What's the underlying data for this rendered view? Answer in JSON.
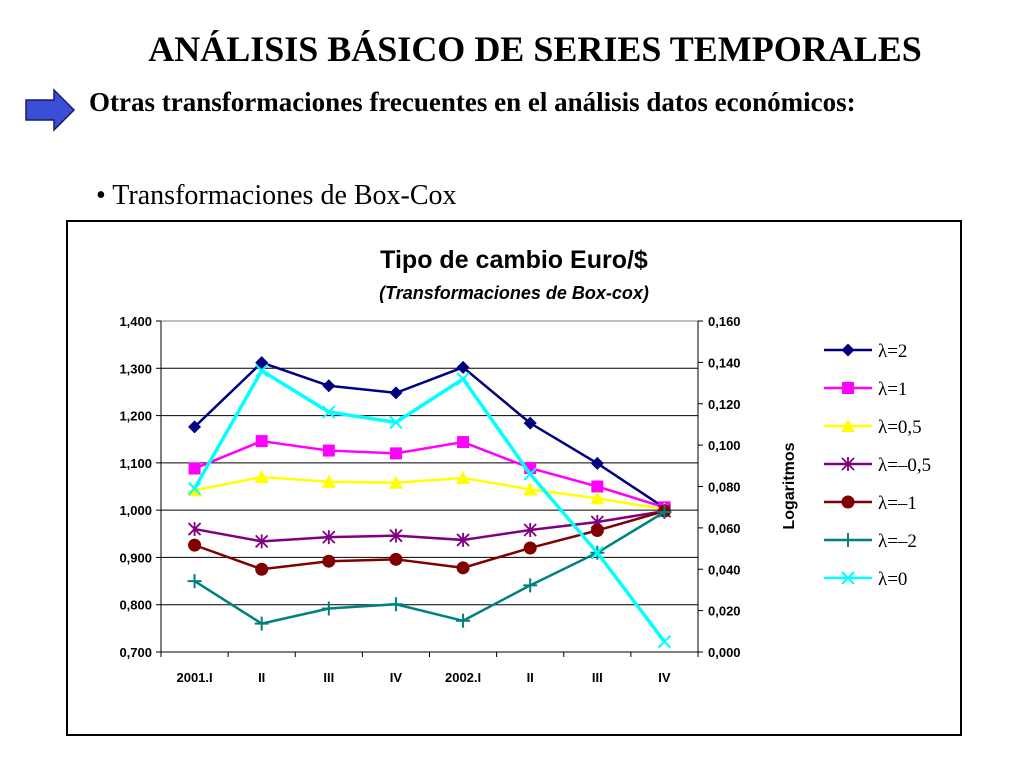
{
  "slide": {
    "title": "ANÁLISIS BÁSICO DE SERIES TEMPORALES",
    "subtitle": "Otras transformaciones frecuentes en el análisis datos económicos:",
    "bullet": "• Transformaciones de Box-Cox",
    "arrow_icon": "right-arrow-icon",
    "arrow_color": "#3B4FD6"
  },
  "chart_data": {
    "type": "line",
    "title": "Tipo de cambio Euro/$",
    "subtitle": "(Transformaciones de Box-cox)",
    "categories": [
      "2001.I",
      "II",
      "III",
      "IV",
      "2002.I",
      "II",
      "III",
      "IV"
    ],
    "y_left": {
      "min": 0.7,
      "max": 1.4,
      "step": 0.1,
      "ticks": [
        "0,700",
        "0,800",
        "0,900",
        "1,000",
        "1,100",
        "1,200",
        "1,300",
        "1,400"
      ]
    },
    "y_right": {
      "label": "Logaritmos",
      "min": 0.0,
      "max": 0.16,
      "step": 0.02,
      "ticks": [
        "0,000",
        "0,020",
        "0,040",
        "0,060",
        "0,080",
        "0,100",
        "0,120",
        "0,140",
        "0,160"
      ]
    },
    "grid": true,
    "legend_position": "right",
    "series": [
      {
        "name": "λ=2",
        "axis": "left",
        "color": "#000080",
        "marker": "diamond",
        "values": [
          1.176,
          1.312,
          1.263,
          1.248,
          1.302,
          1.184,
          1.099,
          1.005
        ]
      },
      {
        "name": "λ=1",
        "axis": "left",
        "color": "#FF00FF",
        "marker": "square",
        "values": [
          1.088,
          1.146,
          1.126,
          1.12,
          1.144,
          1.089,
          1.05,
          1.006
        ]
      },
      {
        "name": "λ=0,5",
        "axis": "left",
        "color": "#FFFF00",
        "marker": "triangle",
        "values": [
          1.042,
          1.07,
          1.06,
          1.058,
          1.068,
          1.044,
          1.025,
          1.002
        ]
      },
      {
        "name": "λ=–0,5",
        "axis": "left",
        "color": "#800080",
        "marker": "star",
        "values": [
          0.96,
          0.934,
          0.943,
          0.946,
          0.937,
          0.958,
          0.975,
          0.998
        ]
      },
      {
        "name": "λ=–1",
        "axis": "left",
        "color": "#800000",
        "marker": "circle",
        "values": [
          0.926,
          0.875,
          0.892,
          0.896,
          0.878,
          0.92,
          0.957,
          0.998
        ]
      },
      {
        "name": "λ=–2",
        "axis": "left",
        "color": "#008080",
        "marker": "plus",
        "values": [
          0.85,
          0.76,
          0.792,
          0.801,
          0.766,
          0.841,
          0.91,
          0.996
        ]
      },
      {
        "name": "λ=0",
        "axis": "right",
        "color": "#00FFFF",
        "marker": "x",
        "values": [
          0.079,
          0.136,
          0.116,
          0.111,
          0.132,
          0.086,
          0.048,
          0.005
        ]
      }
    ]
  }
}
